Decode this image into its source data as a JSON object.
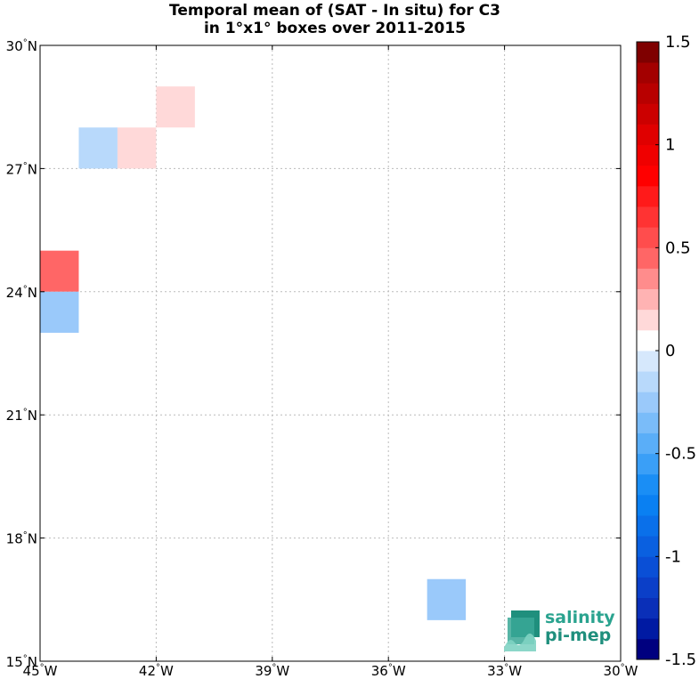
{
  "chart_data": {
    "type": "heatmap",
    "title": "Temporal mean of (SAT - In situ) for C3",
    "subtitle": "in 1°x1° boxes over 2011-2015",
    "xlim": [
      -45,
      -30
    ],
    "ylim": [
      15,
      30
    ],
    "grid": true,
    "x_ticks": [
      {
        "value": -45,
        "label": "45°W"
      },
      {
        "value": -42,
        "label": "42°W"
      },
      {
        "value": -39,
        "label": "39°W"
      },
      {
        "value": -36,
        "label": "36°W"
      },
      {
        "value": -33,
        "label": "33°W"
      },
      {
        "value": -30,
        "label": "30°W"
      }
    ],
    "y_ticks": [
      {
        "value": 30,
        "label": "30°N"
      },
      {
        "value": 27,
        "label": "27°N"
      },
      {
        "value": 24,
        "label": "24°N"
      },
      {
        "value": 21,
        "label": "21°N"
      },
      {
        "value": 18,
        "label": "18°N"
      },
      {
        "value": 15,
        "label": "15°N"
      }
    ],
    "cells": [
      {
        "lon": -42,
        "lat": 28,
        "value": 0.15
      },
      {
        "lon": -44,
        "lat": 27,
        "value": -0.15
      },
      {
        "lon": -43,
        "lat": 27,
        "value": 0.15
      },
      {
        "lon": -45,
        "lat": 24,
        "value": 0.4
      },
      {
        "lon": -45,
        "lat": 23,
        "value": -0.25
      },
      {
        "lon": -35,
        "lat": 16,
        "value": -0.25
      }
    ],
    "colorbar": {
      "range": [
        -1.5,
        1.5
      ],
      "step": 0.1,
      "ticks": [
        {
          "value": 1.5,
          "label": "1.5"
        },
        {
          "value": 1,
          "label": "1"
        },
        {
          "value": 0.5,
          "label": "0.5"
        },
        {
          "value": 0,
          "label": "0"
        },
        {
          "value": -0.5,
          "label": "-0.5"
        },
        {
          "value": -1,
          "label": "-1"
        },
        {
          "value": -1.5,
          "label": "-1.5"
        }
      ],
      "colors_low_to_high": [
        "#00007f",
        "#001aa3",
        "#0a2fb8",
        "#0b3fc8",
        "#0a4fd6",
        "#0a60e0",
        "#0a70ea",
        "#0a80f2",
        "#1a8ef5",
        "#3a9ff7",
        "#5aaef8",
        "#7abcf9",
        "#9ac9fa",
        "#b8d9fb",
        "#d6e8fc",
        "#ffffff",
        "#ffd9d9",
        "#ffb3b3",
        "#ff8c8c",
        "#ff6666",
        "#ff4d4d",
        "#ff3333",
        "#ff1a1a",
        "#ff0000",
        "#f00000",
        "#e00000",
        "#cc0000",
        "#b80000",
        "#a30000",
        "#7f0000"
      ]
    }
  },
  "logo": {
    "line1": "salinity",
    "line2": "pi-mep"
  }
}
